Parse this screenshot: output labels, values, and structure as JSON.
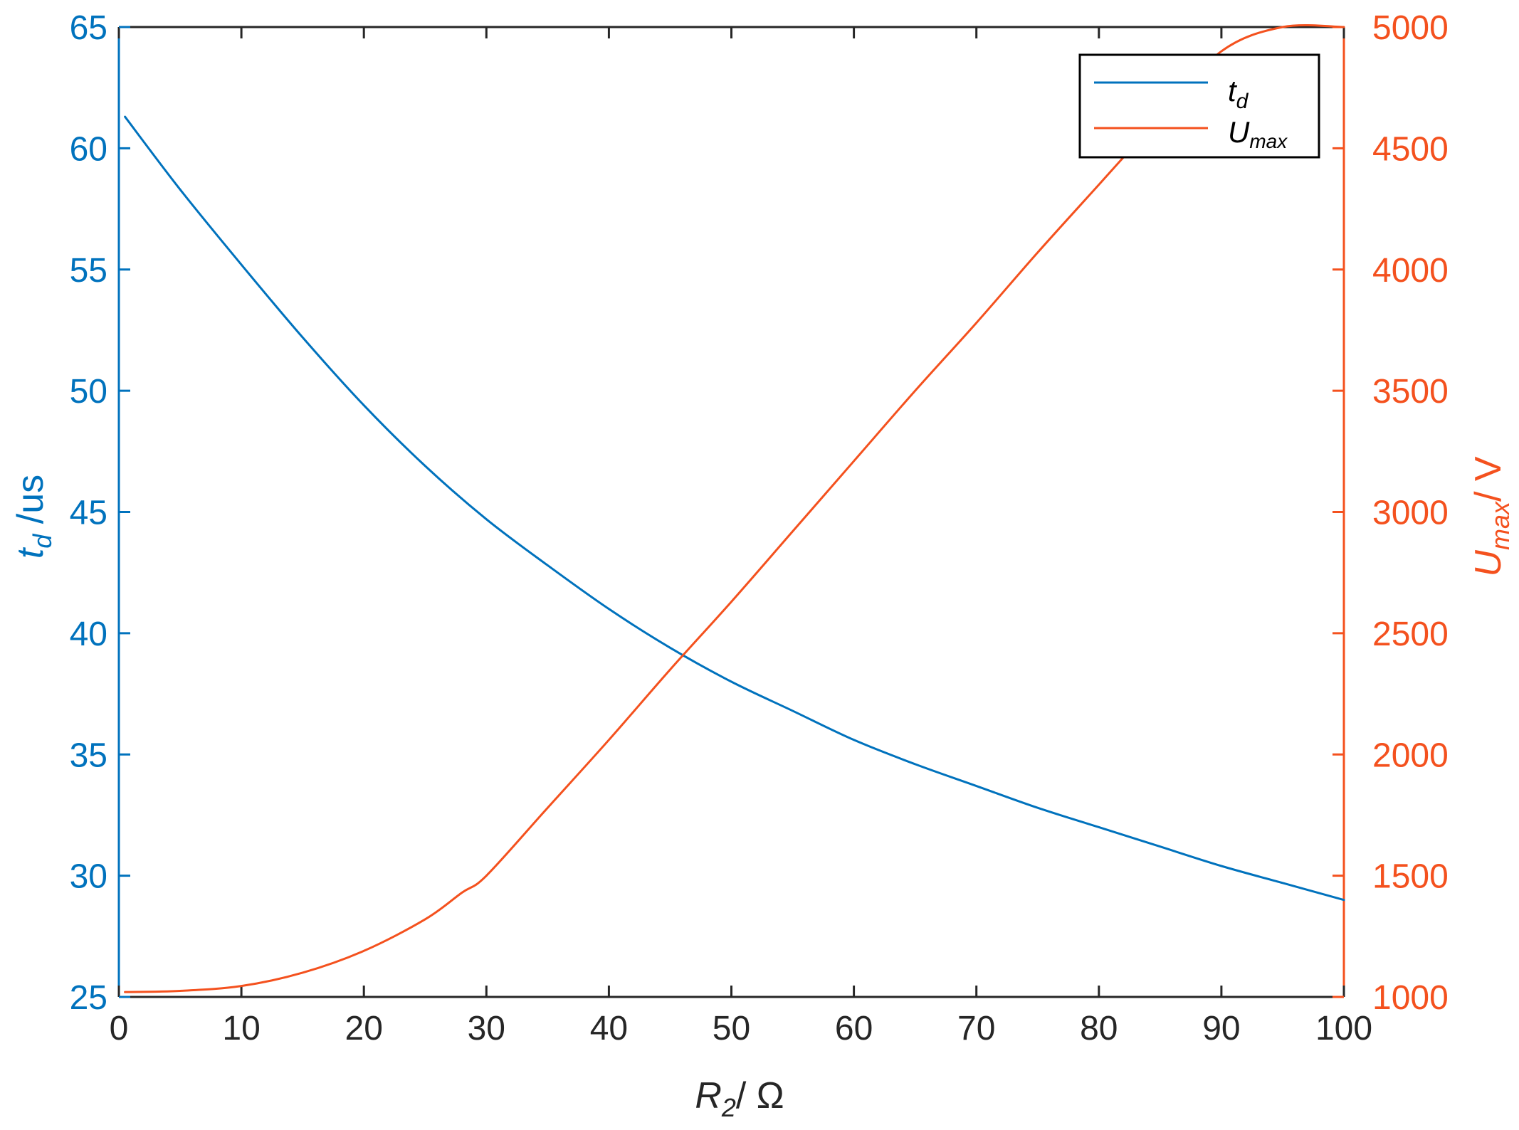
{
  "colors": {
    "left_axis": "#0072BD",
    "right_axis": "#F4511E",
    "x_axis": "#262626",
    "frame": "#262626",
    "legend_border": "#000000"
  },
  "chart_data": {
    "type": "line",
    "title": "",
    "xlabel": {
      "main": "R",
      "sub": "2",
      "tail": "/ Ω"
    },
    "ylabel_left": {
      "main": "t",
      "sub": "d",
      "tail": " /us"
    },
    "ylabel_right": {
      "main": "U",
      "sub": "max",
      "tail": "/ V"
    },
    "xlim": [
      0,
      100
    ],
    "ylim_left": [
      25,
      65
    ],
    "ylim_right": [
      1000,
      5000
    ],
    "x_ticks": [
      "0",
      "10",
      "20",
      "30",
      "40",
      "50",
      "60",
      "70",
      "80",
      "90",
      "100"
    ],
    "y_left_ticks": [
      "25",
      "30",
      "35",
      "40",
      "45",
      "50",
      "55",
      "60",
      "65"
    ],
    "y_right_ticks": [
      "1000",
      "1500",
      "2000",
      "2500",
      "3000",
      "3500",
      "4000",
      "4500",
      "5000"
    ],
    "grid": false,
    "legend_position": "top-right",
    "series": [
      {
        "name": "t_d",
        "legend": {
          "main": "t",
          "sub": "d"
        },
        "axis": "left",
        "color": "#0072BD",
        "x": [
          0.5,
          5,
          10,
          15,
          20,
          25,
          30,
          35,
          40,
          45,
          50,
          55,
          60,
          65,
          70,
          75,
          80,
          85,
          90,
          95,
          100
        ],
        "y": [
          61.3,
          58.3,
          55.2,
          52.2,
          49.4,
          46.9,
          44.7,
          42.8,
          41.0,
          39.4,
          38.0,
          36.8,
          35.6,
          34.6,
          33.7,
          32.8,
          32.0,
          31.2,
          30.4,
          29.7,
          29.0
        ]
      },
      {
        "name": "U_max",
        "legend": {
          "main": "U",
          "sub": "max"
        },
        "axis": "right",
        "color": "#F4511E",
        "x": [
          0.5,
          5,
          10,
          15,
          20,
          25,
          28,
          30,
          35,
          40,
          45,
          50,
          55,
          60,
          65,
          70,
          75,
          80,
          85,
          90,
          95,
          100
        ],
        "y": [
          1020,
          1025,
          1045,
          1100,
          1190,
          1320,
          1430,
          1500,
          1780,
          2060,
          2350,
          2630,
          2920,
          3210,
          3500,
          3780,
          4070,
          4350,
          4630,
          4900,
          5000,
          5000
        ]
      }
    ]
  }
}
